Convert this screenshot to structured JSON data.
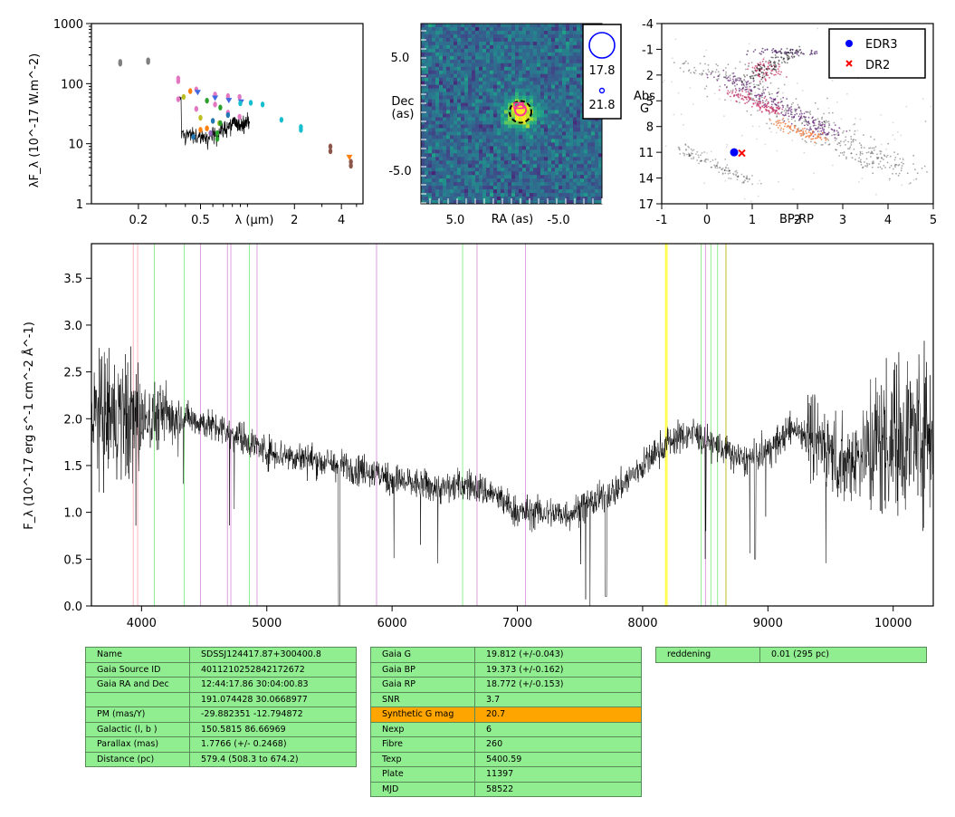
{
  "chart_data": [
    {
      "type": "scatter",
      "panel": "sed",
      "xlabel": "λ (μm)",
      "ylabel": "λF_λ (10^-17 W.m^-2)",
      "xscale": "log",
      "yscale": "log",
      "xlim": [
        0.1,
        5.5
      ],
      "ylim": [
        1,
        1000
      ],
      "xticks": [
        "0.2",
        "0.5",
        "2",
        "4"
      ],
      "yticks": [
        "1",
        "10",
        "100",
        "1000"
      ],
      "series": [
        {
          "color": "#7f7f7f",
          "points": [
            [
              0.153,
              215
            ],
            [
              0.153,
              230
            ],
            [
              0.231,
              230
            ],
            [
              0.231,
              245
            ]
          ]
        },
        {
          "color": "#e377c2",
          "points": [
            [
              0.36,
              110
            ],
            [
              0.36,
              122
            ],
            [
              0.36,
              55
            ],
            [
              0.47,
              80
            ],
            [
              0.47,
              38
            ],
            [
              0.62,
              66
            ],
            [
              0.62,
              45
            ],
            [
              0.75,
              62
            ],
            [
              0.75,
              33
            ],
            [
              0.89,
              60
            ],
            [
              0.89,
              28
            ]
          ]
        },
        {
          "color": "#bcbd22",
          "points": [
            [
              0.39,
              60
            ],
            [
              0.5,
              27
            ],
            [
              0.66,
              22
            ]
          ]
        },
        {
          "color": "#ff7f0e",
          "points": [
            [
              0.43,
              75
            ],
            [
              0.5,
              17
            ],
            [
              0.55,
              18
            ]
          ]
        },
        {
          "color": "#1f77b4",
          "points": [
            [
              0.45,
              13
            ],
            [
              0.6,
              24
            ],
            [
              0.75,
              30
            ]
          ]
        },
        {
          "color": "#4169e1",
          "marker": "v",
          "points": [
            [
              0.48,
              72
            ],
            [
              0.62,
              58
            ],
            [
              0.76,
              53
            ],
            [
              0.91,
              50
            ]
          ]
        },
        {
          "color": "#2ca02c",
          "points": [
            [
              0.55,
              52
            ],
            [
              0.64,
              15
            ],
            [
              0.64,
              12
            ],
            [
              0.67,
              40
            ],
            [
              0.67,
              22
            ]
          ]
        },
        {
          "color": "#9467bd",
          "points": [
            [
              0.58,
              15
            ]
          ]
        },
        {
          "color": "#17becf",
          "points": [
            [
              0.9,
              47
            ],
            [
              1.05,
              48
            ],
            [
              1.25,
              45
            ],
            [
              1.65,
              25
            ],
            [
              2.2,
              19
            ],
            [
              2.2,
              17
            ]
          ]
        },
        {
          "color": "#8c564b",
          "points": [
            [
              3.4,
              9
            ],
            [
              3.4,
              7.5
            ],
            [
              4.6,
              5
            ],
            [
              4.6,
              4.3
            ]
          ]
        },
        {
          "color": "#ff7f0e",
          "marker": "v",
          "points": [
            [
              4.5,
              6
            ]
          ]
        }
      ],
      "spectrum_range_um": [
        0.36,
        1.03
      ]
    },
    {
      "type": "image",
      "panel": "cutout",
      "xlabel": "RA (as)",
      "ylabel": "Dec\n(as)",
      "xticks": [
        "5.0",
        "-5.0"
      ],
      "yticks": [
        "5.0",
        "-5.0"
      ],
      "legend": [
        "17.8",
        "21.8"
      ]
    },
    {
      "type": "scatter",
      "panel": "hrd",
      "xlabel": "BP-RP",
      "ylabel": "Abs\nG",
      "xlim": [
        -1,
        5
      ],
      "ylim": [
        17,
        -4
      ],
      "xticks": [
        "-1",
        "0",
        "1",
        "2",
        "3",
        "4",
        "5"
      ],
      "yticks": [
        "-4",
        "-1",
        "2",
        "5",
        "8",
        "11",
        "14",
        "17"
      ],
      "legend": [
        {
          "name": "EDR3",
          "color": "#0000ff",
          "marker": "o",
          "x": 0.6,
          "y": 11.0
        },
        {
          "name": "DR2",
          "color": "#ff0000",
          "marker": "x",
          "x": 0.77,
          "y": 11.1
        }
      ]
    },
    {
      "type": "line",
      "panel": "spectrum",
      "xlabel": "",
      "ylabel": "F_λ (10^-17 erg s^-1 cm^-2 Å^-1)",
      "xlim": [
        3600,
        10320
      ],
      "ylim": [
        0,
        3.87
      ],
      "xticks": [
        "4000",
        "5000",
        "6000",
        "7000",
        "8000",
        "9000",
        "10000"
      ],
      "yticks": [
        "0.0",
        "0.5",
        "1.0",
        "1.5",
        "2.0",
        "2.5",
        "3.0",
        "3.5"
      ],
      "continuum": [
        [
          3600,
          2.0
        ],
        [
          3800,
          2.0
        ],
        [
          4000,
          2.0
        ],
        [
          4200,
          2.05
        ],
        [
          4400,
          2.0
        ],
        [
          4600,
          1.9
        ],
        [
          4800,
          1.8
        ],
        [
          5000,
          1.65
        ],
        [
          5200,
          1.6
        ],
        [
          5400,
          1.55
        ],
        [
          5600,
          1.5
        ],
        [
          5800,
          1.45
        ],
        [
          6000,
          1.35
        ],
        [
          6200,
          1.3
        ],
        [
          6400,
          1.25
        ],
        [
          6600,
          1.3
        ],
        [
          6800,
          1.2
        ],
        [
          7000,
          1.0
        ],
        [
          7200,
          1.0
        ],
        [
          7400,
          0.98
        ],
        [
          7600,
          1.1
        ],
        [
          7800,
          1.25
        ],
        [
          8000,
          1.5
        ],
        [
          8200,
          1.75
        ],
        [
          8400,
          1.85
        ],
        [
          8600,
          1.7
        ],
        [
          8800,
          1.55
        ],
        [
          9000,
          1.65
        ],
        [
          9200,
          1.9
        ],
        [
          9400,
          1.8
        ],
        [
          9600,
          1.5
        ],
        [
          9800,
          1.7
        ],
        [
          10000,
          1.8
        ],
        [
          10300,
          1.9
        ]
      ],
      "lines": [
        {
          "x": 3934,
          "color": "#ffb6c1"
        },
        {
          "x": 3969,
          "color": "#ffb6c1"
        },
        {
          "x": 4102,
          "color": "#90ee90"
        },
        {
          "x": 4341,
          "color": "#90ee90"
        },
        {
          "x": 4861,
          "color": "#90ee90"
        },
        {
          "x": 6563,
          "color": "#90ee90"
        },
        {
          "x": 4471,
          "color": "#dda0dd"
        },
        {
          "x": 4686,
          "color": "#dda0dd"
        },
        {
          "x": 4713,
          "color": "#dda0dd"
        },
        {
          "x": 4922,
          "color": "#dda0dd"
        },
        {
          "x": 5876,
          "color": "#dda0dd"
        },
        {
          "x": 6678,
          "color": "#dda0dd"
        },
        {
          "x": 7065,
          "color": "#dda0dd"
        },
        {
          "x": 8183,
          "color": "#ffff00"
        },
        {
          "x": 8195,
          "color": "#ffff00"
        },
        {
          "x": 8467,
          "color": "#90ee90"
        },
        {
          "x": 8502,
          "color": "#dda0dd"
        },
        {
          "x": 8545,
          "color": "#90ee90"
        },
        {
          "x": 8598,
          "color": "#90ee90"
        },
        {
          "x": 8665,
          "color": "#bcbd22"
        }
      ]
    }
  ],
  "tables": {
    "identity": [
      [
        "Name",
        "SDSSJ124417.87+300400.8"
      ],
      [
        "Gaia Source ID",
        "4011210252842172672"
      ],
      [
        "Gaia RA and Dec",
        "12:44:17.86    30:04:00.83"
      ],
      [
        "",
        "191.074428    30.0668977"
      ],
      [
        "PM (mas/Y)",
        "-29.882351    -12.794872"
      ],
      [
        "Galactic (l, b )",
        "150.5815    86.66969"
      ],
      [
        "Parallax (mas)",
        "1.7766 (+/- 0.2468)"
      ],
      [
        "Distance (pc)",
        "579.4 (508.3 to 674.2)"
      ]
    ],
    "photometry": [
      [
        "Gaia G",
        "19.812 (+/-0.043)"
      ],
      [
        "Gaia BP",
        "19.373 (+/-0.162)"
      ],
      [
        "Gaia RP",
        "18.772 (+/-0.153)"
      ],
      [
        "SNR",
        "3.7"
      ],
      [
        "Synthetic G mag",
        "20.7"
      ],
      [
        "Nexp",
        "6"
      ],
      [
        "Fibre",
        "260"
      ],
      [
        "Texp",
        "5400.59"
      ],
      [
        "Plate",
        "11397"
      ],
      [
        "MJD",
        "58522"
      ]
    ],
    "photometry_highlight_row": 4,
    "extinction": [
      [
        "reddening",
        "0.01 (295 pc)"
      ]
    ],
    "colors": {
      "cell": "#90ee90",
      "highlight": "#ffa500"
    }
  }
}
